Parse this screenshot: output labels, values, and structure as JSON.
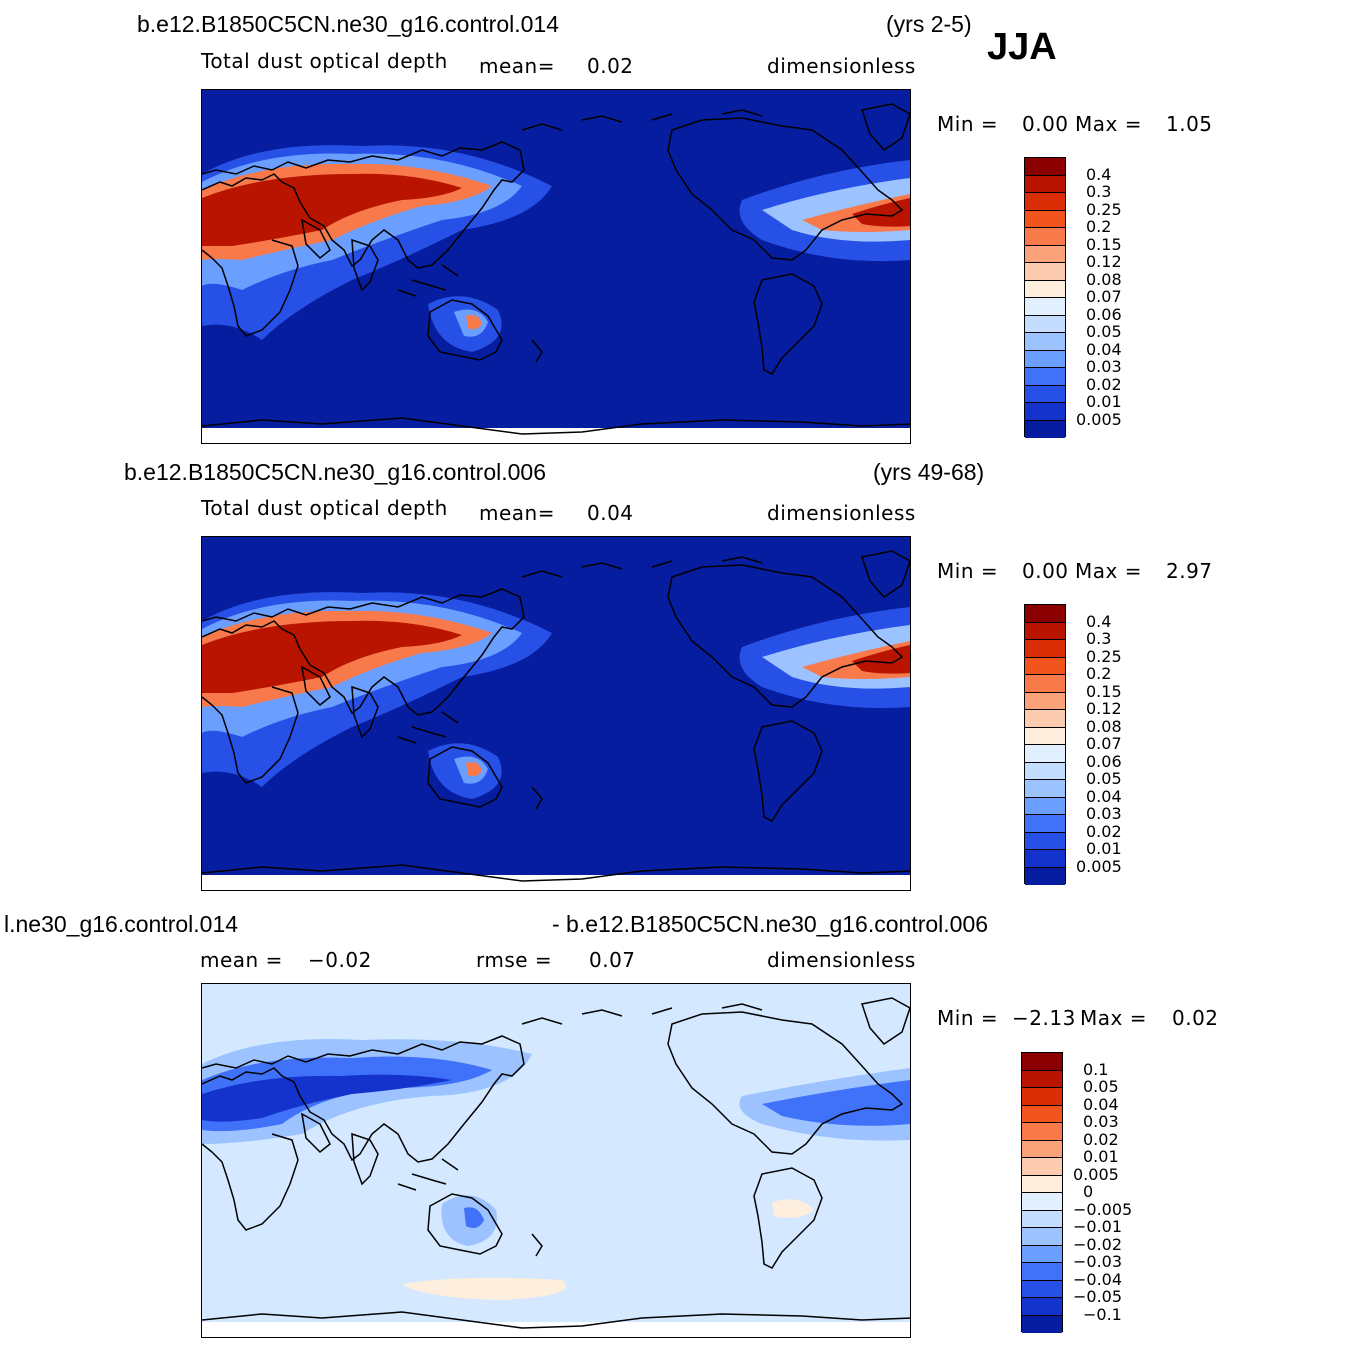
{
  "season": "JJA",
  "panels": [
    {
      "case_title": "b.e12.B1850C5CN.ne30_g16.control.014",
      "years": "(yrs 2-5)",
      "variable": "Total dust optical depth",
      "stat1_label": "mean=",
      "stat1_value": "0.02",
      "units": "dimensionless",
      "min_label": "Min =",
      "min_value": "0.00",
      "max_label": "Max =",
      "max_value": "1.05",
      "colorbar": {
        "labels": [
          "0.4",
          "0.3",
          "0.25",
          "0.2",
          "0.15",
          "0.12",
          "0.08",
          "0.07",
          "0.06",
          "0.05",
          "0.04",
          "0.03",
          "0.02",
          "0.01",
          "0.005"
        ],
        "colors": [
          "#8a0000",
          "#b81400",
          "#dc2e06",
          "#f2541e",
          "#f8794a",
          "#fba27b",
          "#fdcbaf",
          "#fdeede",
          "#e1efff",
          "#c4ddff",
          "#9cc3ff",
          "#6a9eff",
          "#3f72f8",
          "#2650e6",
          "#1432cc",
          "#051d9e"
        ]
      }
    },
    {
      "case_title": "b.e12.B1850C5CN.ne30_g16.control.006",
      "years": "(yrs 49-68)",
      "variable": "Total dust optical depth",
      "stat1_label": "mean=",
      "stat1_value": "0.04",
      "units": "dimensionless",
      "min_label": "Min =",
      "min_value": "0.00",
      "max_label": "Max =",
      "max_value": "2.97",
      "colorbar": {
        "labels": [
          "0.4",
          "0.3",
          "0.25",
          "0.2",
          "0.15",
          "0.12",
          "0.08",
          "0.07",
          "0.06",
          "0.05",
          "0.04",
          "0.03",
          "0.02",
          "0.01",
          "0.005"
        ],
        "colors": [
          "#8a0000",
          "#b81400",
          "#dc2e06",
          "#f2541e",
          "#f8794a",
          "#fba27b",
          "#fdcbaf",
          "#fdeede",
          "#e1efff",
          "#c4ddff",
          "#9cc3ff",
          "#6a9eff",
          "#3f72f8",
          "#2650e6",
          "#1432cc",
          "#051d9e"
        ]
      }
    },
    {
      "case_title_left": "l.ne30_g16.control.014",
      "case_title_right": "- b.e12.B1850C5CN.ne30_g16.control.006",
      "stat1_label": "mean =",
      "stat1_value": "−0.02",
      "stat2_label": "rmse =",
      "stat2_value": "0.07",
      "units": "dimensionless",
      "min_label": "Min =",
      "min_value": "−2.13",
      "max_label": "Max =",
      "max_value": "0.02",
      "colorbar": {
        "labels": [
          "0.1",
          "0.05",
          "0.04",
          "0.03",
          "0.02",
          "0.01",
          "0.005",
          "0",
          "−0.005",
          "−0.01",
          "−0.02",
          "−0.03",
          "−0.04",
          "−0.05",
          "−0.1"
        ],
        "colors": [
          "#8a0000",
          "#b81400",
          "#dc2e06",
          "#f2541e",
          "#f8794a",
          "#fba27b",
          "#fdcbaf",
          "#fdeede",
          "#e1efff",
          "#c4ddff",
          "#9cc3ff",
          "#6a9eff",
          "#3f72f8",
          "#2650e6",
          "#1432cc",
          "#051d9e"
        ]
      }
    }
  ]
}
